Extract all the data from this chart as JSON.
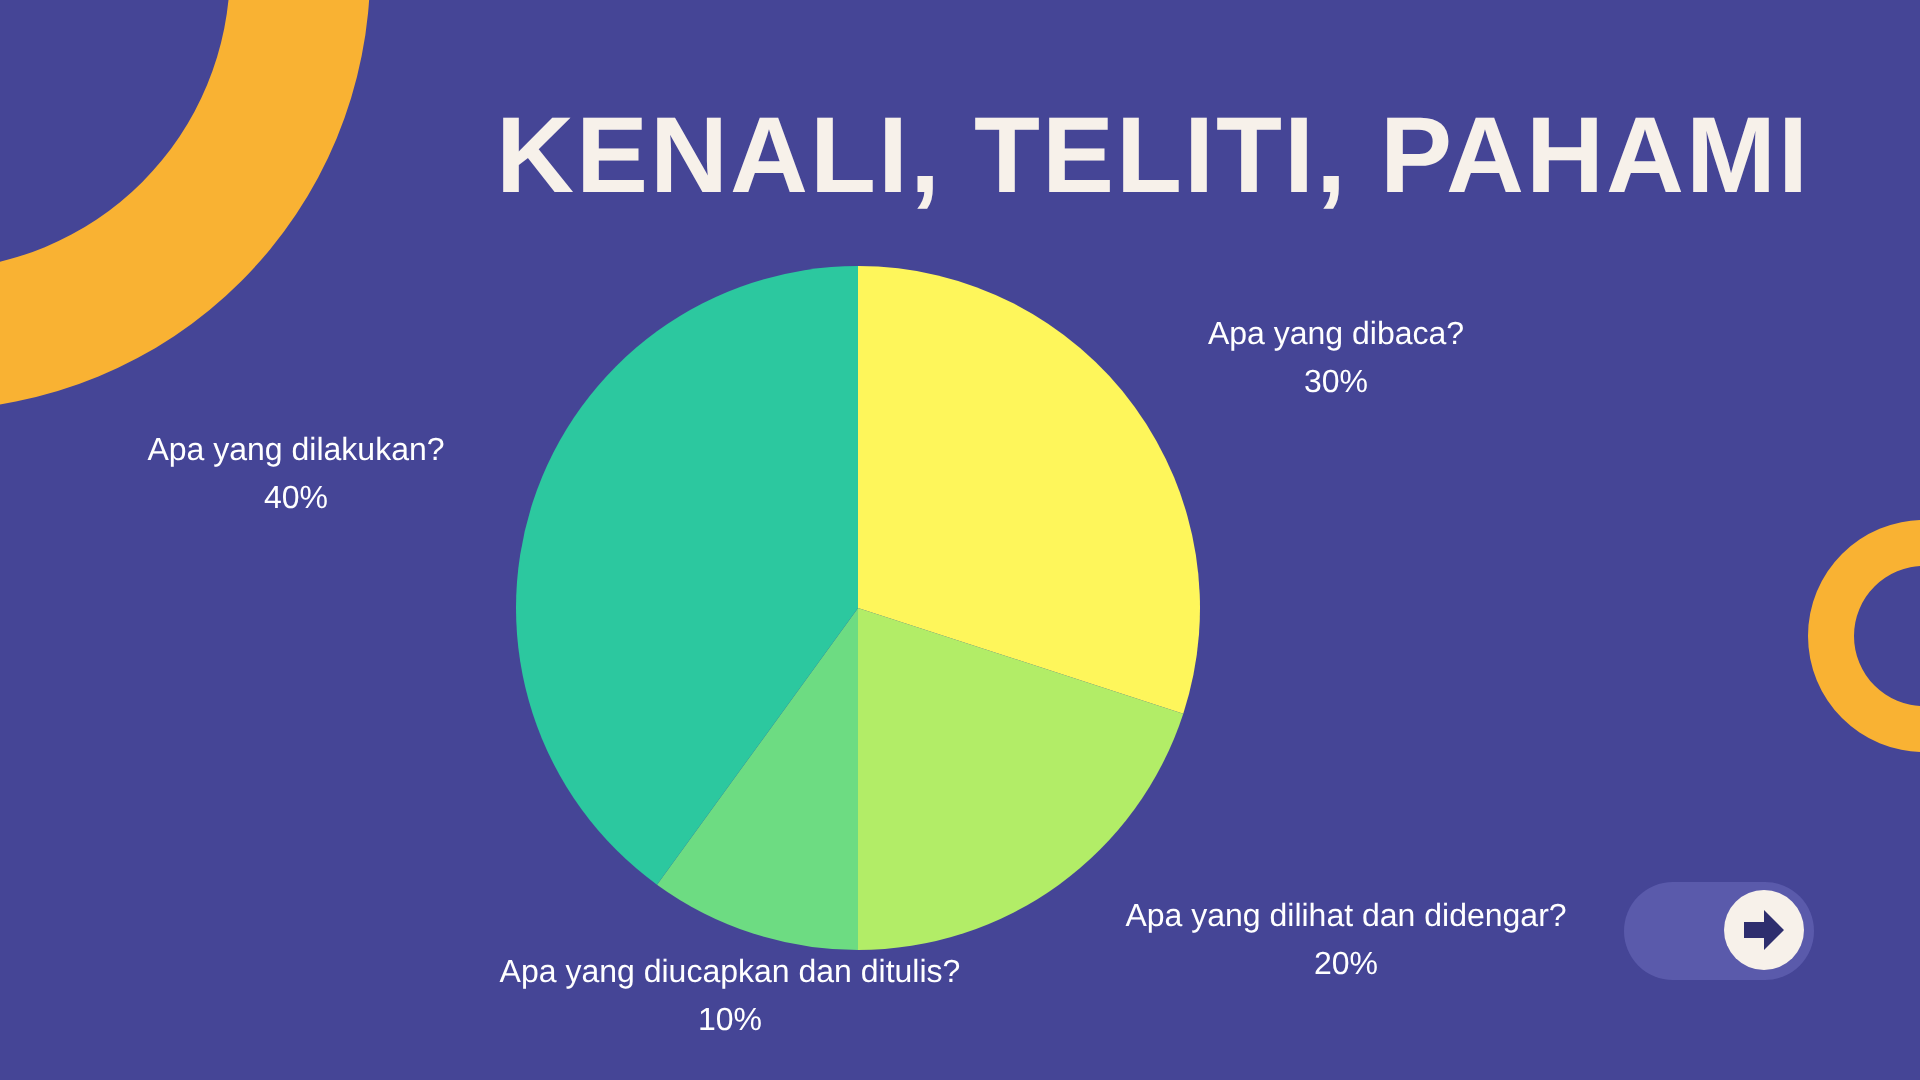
{
  "chart_data": {
    "type": "pie",
    "title": "KENALI, TELITI, PAHAMI",
    "categories": [
      "Apa yang dibaca?",
      "Apa yang dilihat dan didengar?",
      "Apa yang diucapkan dan ditulis?",
      "Apa yang dilakukan?"
    ],
    "values": [
      30,
      20,
      10,
      40
    ],
    "colors": [
      "#fef65b",
      "#b2ed67",
      "#6ddc82",
      "#2cc89f"
    ],
    "value_labels": [
      "30%",
      "20%",
      "10%",
      "40%"
    ]
  }
}
